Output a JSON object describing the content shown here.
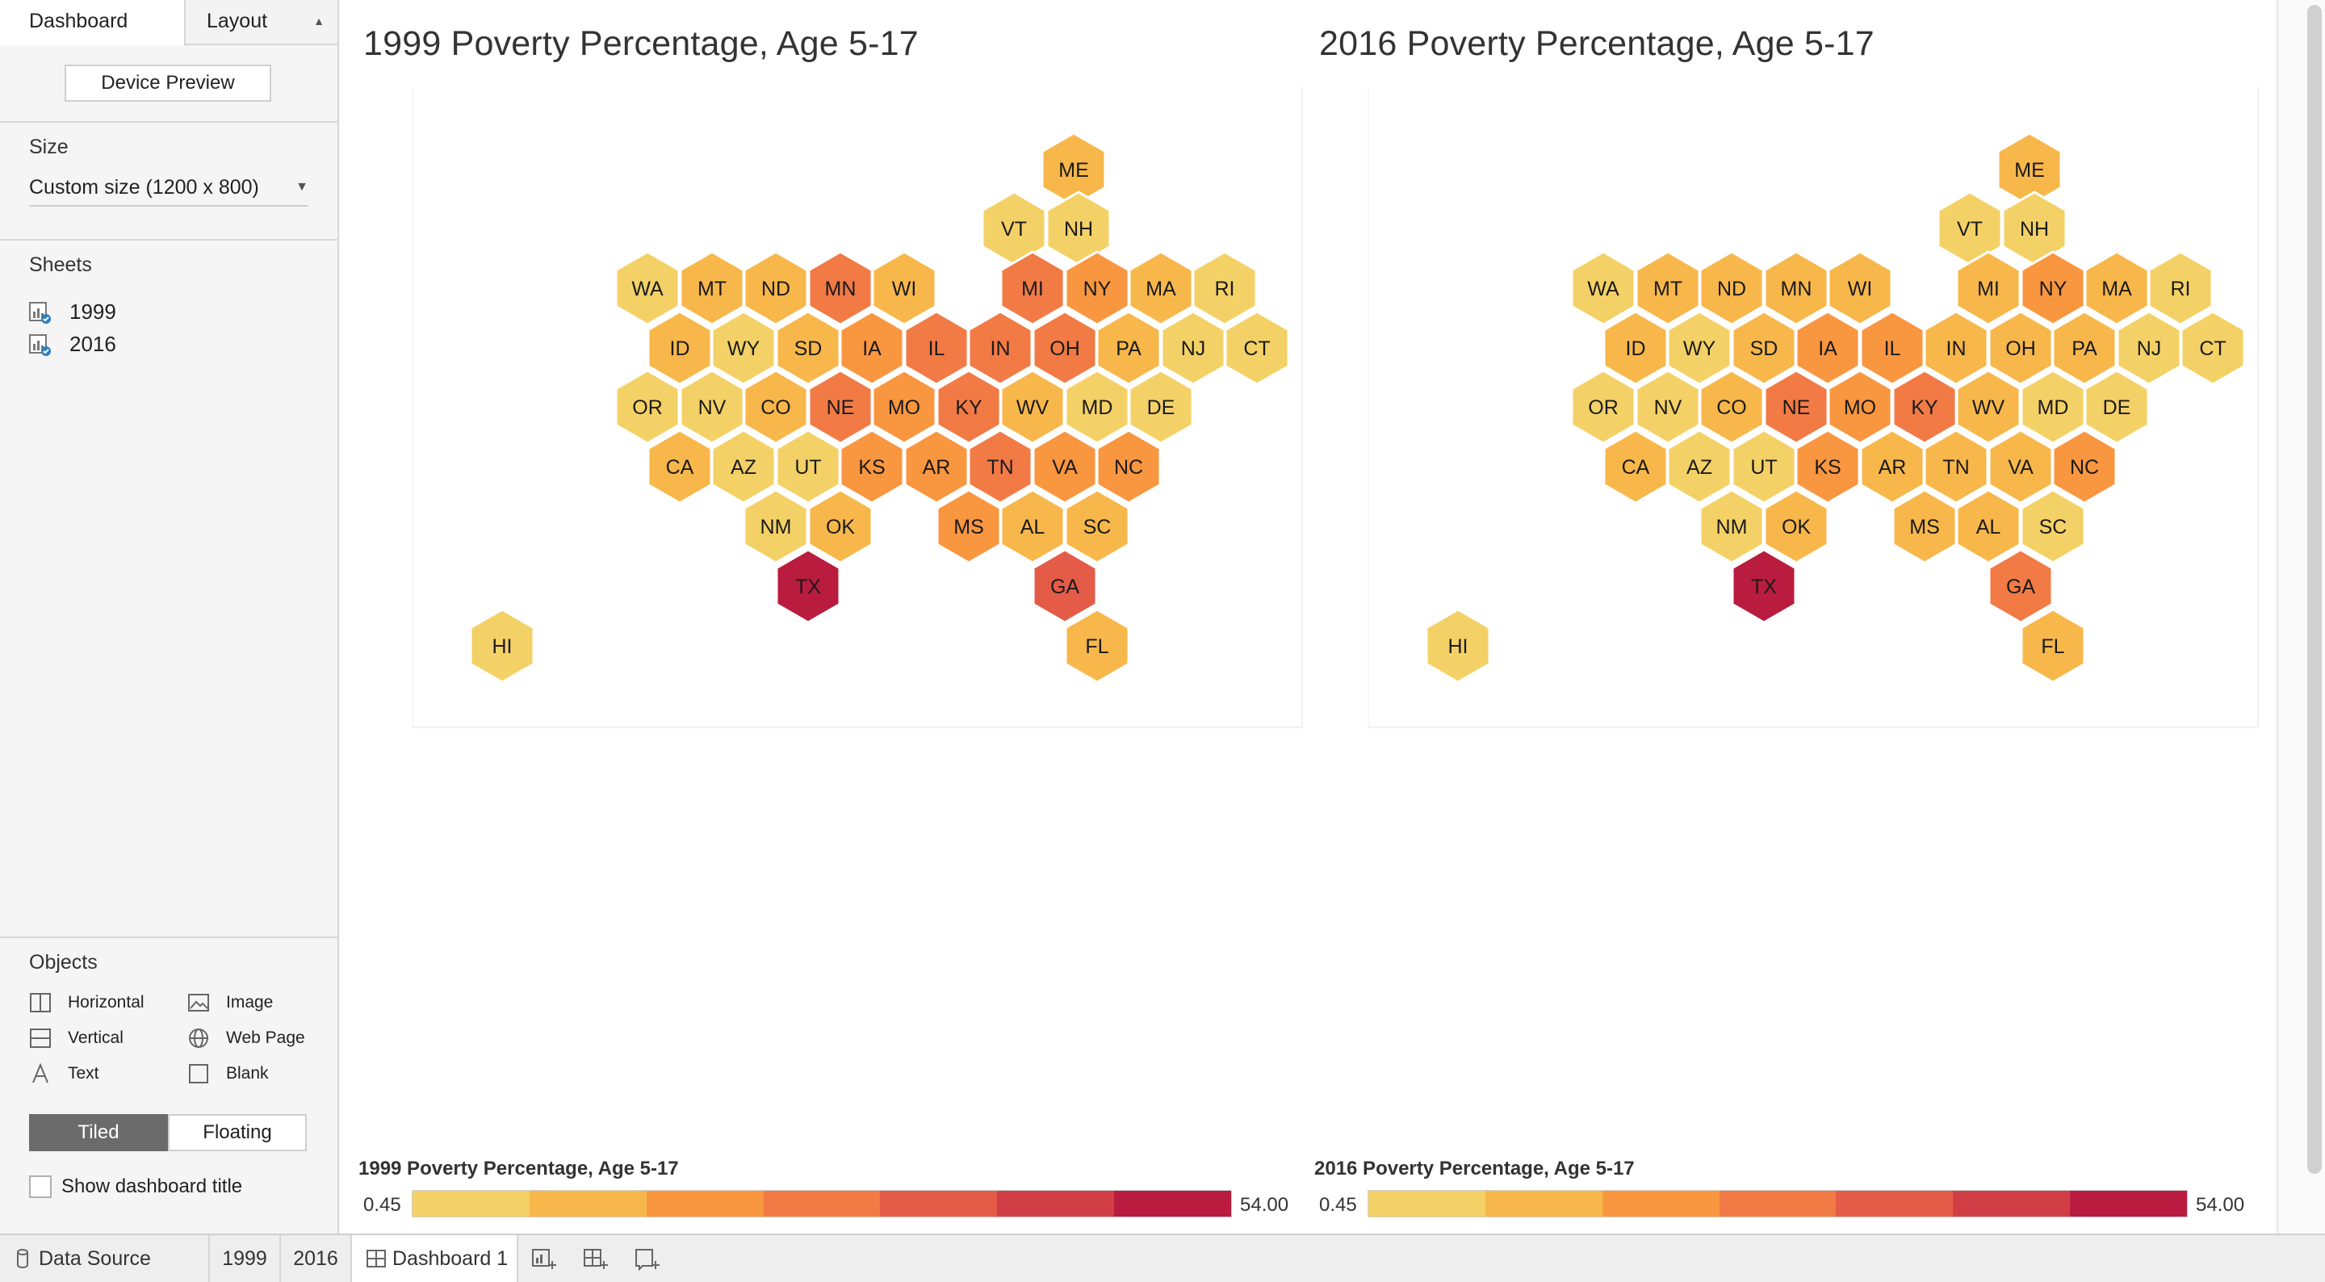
{
  "panel": {
    "tabs": {
      "dashboard": "Dashboard",
      "layout": "Layout"
    },
    "device_preview": "Device Preview",
    "size": {
      "title": "Size",
      "value": "Custom size (1200 x 800)"
    },
    "sheets": {
      "title": "Sheets",
      "items": [
        {
          "label": "1999"
        },
        {
          "label": "2016"
        }
      ]
    },
    "objects": {
      "title": "Objects",
      "items": [
        {
          "label": "Horizontal",
          "icon": "horizontal-icon"
        },
        {
          "label": "Image",
          "icon": "image-icon"
        },
        {
          "label": "Vertical",
          "icon": "vertical-icon"
        },
        {
          "label": "Web Page",
          "icon": "globe-icon"
        },
        {
          "label": "Text",
          "icon": "text-icon"
        },
        {
          "label": "Blank",
          "icon": "blank-icon"
        }
      ]
    },
    "tiled": "Tiled",
    "floating": "Floating",
    "show_title": {
      "label": "Show dashboard title",
      "checked": false
    }
  },
  "colors": {
    "scale": [
      "#f4d166",
      "#f8b74a",
      "#f99640",
      "#f27a45",
      "#e45b48",
      "#d23e45",
      "#b91c3e"
    ]
  },
  "maps": [
    {
      "title": "1999 Poverty Percentage, Age 5-17",
      "legend": {
        "title": "1999 Poverty Percentage, Age 5-17",
        "min": "0.45",
        "max": "54.00"
      },
      "states": [
        {
          "s": "ME",
          "c": 1
        },
        {
          "s": "VT",
          "c": 0
        },
        {
          "s": "NH",
          "c": 0
        },
        {
          "s": "WA",
          "c": 0
        },
        {
          "s": "MT",
          "c": 1
        },
        {
          "s": "ND",
          "c": 1
        },
        {
          "s": "MN",
          "c": 3
        },
        {
          "s": "WI",
          "c": 1
        },
        {
          "s": "MI",
          "c": 3
        },
        {
          "s": "NY",
          "c": 2
        },
        {
          "s": "MA",
          "c": 1
        },
        {
          "s": "RI",
          "c": 0
        },
        {
          "s": "ID",
          "c": 1
        },
        {
          "s": "WY",
          "c": 0
        },
        {
          "s": "SD",
          "c": 1
        },
        {
          "s": "IA",
          "c": 2
        },
        {
          "s": "IL",
          "c": 3
        },
        {
          "s": "IN",
          "c": 3
        },
        {
          "s": "OH",
          "c": 3
        },
        {
          "s": "PA",
          "c": 1
        },
        {
          "s": "NJ",
          "c": 0
        },
        {
          "s": "CT",
          "c": 0
        },
        {
          "s": "OR",
          "c": 0
        },
        {
          "s": "NV",
          "c": 0
        },
        {
          "s": "CO",
          "c": 1
        },
        {
          "s": "NE",
          "c": 3
        },
        {
          "s": "MO",
          "c": 2
        },
        {
          "s": "KY",
          "c": 3
        },
        {
          "s": "WV",
          "c": 1
        },
        {
          "s": "MD",
          "c": 0
        },
        {
          "s": "DE",
          "c": 0
        },
        {
          "s": "CA",
          "c": 1
        },
        {
          "s": "AZ",
          "c": 0
        },
        {
          "s": "UT",
          "c": 0
        },
        {
          "s": "KS",
          "c": 2
        },
        {
          "s": "AR",
          "c": 2
        },
        {
          "s": "TN",
          "c": 3
        },
        {
          "s": "VA",
          "c": 2
        },
        {
          "s": "NC",
          "c": 2
        },
        {
          "s": "NM",
          "c": 0
        },
        {
          "s": "OK",
          "c": 1
        },
        {
          "s": "MS",
          "c": 2
        },
        {
          "s": "AL",
          "c": 1
        },
        {
          "s": "SC",
          "c": 1
        },
        {
          "s": "TX",
          "c": 6
        },
        {
          "s": "GA",
          "c": 4
        },
        {
          "s": "HI",
          "c": 0
        },
        {
          "s": "FL",
          "c": 1
        }
      ]
    },
    {
      "title": "2016 Poverty Percentage, Age 5-17",
      "legend": {
        "title": "2016 Poverty Percentage, Age 5-17",
        "min": "0.45",
        "max": "54.00"
      },
      "states": [
        {
          "s": "ME",
          "c": 1
        },
        {
          "s": "VT",
          "c": 0
        },
        {
          "s": "NH",
          "c": 0
        },
        {
          "s": "WA",
          "c": 0
        },
        {
          "s": "MT",
          "c": 1
        },
        {
          "s": "ND",
          "c": 1
        },
        {
          "s": "MN",
          "c": 1
        },
        {
          "s": "WI",
          "c": 1
        },
        {
          "s": "MI",
          "c": 1
        },
        {
          "s": "NY",
          "c": 2
        },
        {
          "s": "MA",
          "c": 1
        },
        {
          "s": "RI",
          "c": 0
        },
        {
          "s": "ID",
          "c": 1
        },
        {
          "s": "WY",
          "c": 0
        },
        {
          "s": "SD",
          "c": 1
        },
        {
          "s": "IA",
          "c": 2
        },
        {
          "s": "IL",
          "c": 2
        },
        {
          "s": "IN",
          "c": 1
        },
        {
          "s": "OH",
          "c": 1
        },
        {
          "s": "PA",
          "c": 1
        },
        {
          "s": "NJ",
          "c": 0
        },
        {
          "s": "CT",
          "c": 0
        },
        {
          "s": "OR",
          "c": 0
        },
        {
          "s": "NV",
          "c": 0
        },
        {
          "s": "CO",
          "c": 1
        },
        {
          "s": "NE",
          "c": 3
        },
        {
          "s": "MO",
          "c": 2
        },
        {
          "s": "KY",
          "c": 3
        },
        {
          "s": "WV",
          "c": 1
        },
        {
          "s": "MD",
          "c": 0
        },
        {
          "s": "DE",
          "c": 0
        },
        {
          "s": "CA",
          "c": 1
        },
        {
          "s": "AZ",
          "c": 0
        },
        {
          "s": "UT",
          "c": 0
        },
        {
          "s": "KS",
          "c": 2
        },
        {
          "s": "AR",
          "c": 1
        },
        {
          "s": "TN",
          "c": 1
        },
        {
          "s": "VA",
          "c": 1
        },
        {
          "s": "NC",
          "c": 2
        },
        {
          "s": "NM",
          "c": 0
        },
        {
          "s": "OK",
          "c": 1
        },
        {
          "s": "MS",
          "c": 1
        },
        {
          "s": "AL",
          "c": 1
        },
        {
          "s": "SC",
          "c": 0
        },
        {
          "s": "TX",
          "c": 6
        },
        {
          "s": "GA",
          "c": 3
        },
        {
          "s": "HI",
          "c": 0
        },
        {
          "s": "FL",
          "c": 1
        }
      ]
    }
  ],
  "bottom_tabs": {
    "data_source": "Data Source",
    "sheet_1999": "1999",
    "sheet_2016": "2016",
    "dashboard": "Dashboard 1"
  }
}
